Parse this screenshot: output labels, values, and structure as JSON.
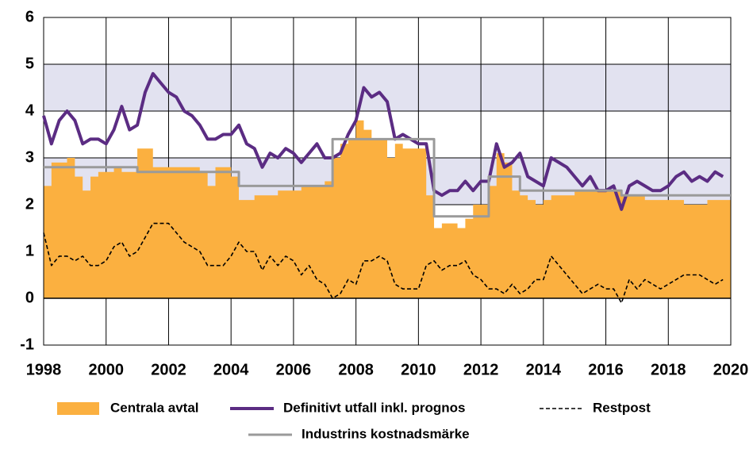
{
  "chart_data": {
    "type": "line",
    "xlim": [
      1998,
      2020
    ],
    "xticks": [
      1998,
      2000,
      2002,
      2004,
      2006,
      2008,
      2010,
      2012,
      2014,
      2016,
      2018,
      2020
    ],
    "ylim": [
      -1,
      6
    ],
    "yticks": [
      -1,
      0,
      1,
      2,
      3,
      4,
      5,
      6
    ],
    "grid": true,
    "shaded_bands": [
      [
        2,
        3
      ],
      [
        4,
        5
      ]
    ],
    "legend": "bottom",
    "x": [
      1998,
      1998.25,
      1998.5,
      1998.75,
      1999,
      1999.25,
      1999.5,
      1999.75,
      2000,
      2000.25,
      2000.5,
      2000.75,
      2001,
      2001.25,
      2001.5,
      2001.75,
      2002,
      2002.25,
      2002.5,
      2002.75,
      2003,
      2003.25,
      2003.5,
      2003.75,
      2004,
      2004.25,
      2004.5,
      2004.75,
      2005,
      2005.25,
      2005.5,
      2005.75,
      2006,
      2006.25,
      2006.5,
      2006.75,
      2007,
      2007.25,
      2007.5,
      2007.75,
      2008,
      2008.25,
      2008.5,
      2008.75,
      2009,
      2009.25,
      2009.5,
      2009.75,
      2010,
      2010.25,
      2010.5,
      2010.75,
      2011,
      2011.25,
      2011.5,
      2011.75,
      2012,
      2012.25,
      2012.5,
      2012.75,
      2013,
      2013.25,
      2013.5,
      2013.75,
      2014,
      2014.25,
      2014.5,
      2014.75,
      2015,
      2015.25,
      2015.5,
      2015.75,
      2016,
      2016.25,
      2016.5,
      2016.75,
      2017,
      2017.25,
      2017.5,
      2017.75,
      2018,
      2018.25,
      2018.5,
      2018.75,
      2019,
      2019.25,
      2019.5,
      2019.75
    ],
    "series": [
      {
        "name": "Centrala avtal",
        "kind": "area",
        "step": true,
        "color": "#fbb040",
        "values": [
          2.4,
          2.9,
          2.9,
          3.0,
          2.6,
          2.3,
          2.6,
          2.7,
          2.7,
          2.8,
          2.7,
          2.7,
          3.2,
          3.2,
          2.8,
          2.8,
          2.8,
          2.8,
          2.8,
          2.8,
          2.7,
          2.4,
          2.8,
          2.8,
          2.6,
          2.1,
          2.1,
          2.2,
          2.2,
          2.2,
          2.3,
          2.3,
          2.3,
          2.4,
          2.4,
          2.4,
          2.5,
          3.0,
          3.3,
          3.4,
          3.8,
          3.6,
          3.4,
          3.4,
          3.0,
          3.3,
          3.2,
          3.2,
          3.2,
          2.2,
          1.5,
          1.6,
          1.6,
          1.5,
          1.7,
          2.0,
          2.0,
          2.4,
          3.1,
          2.9,
          2.3,
          2.2,
          2.1,
          2.0,
          2.1,
          2.2,
          2.2,
          2.2,
          2.3,
          2.3,
          2.3,
          2.3,
          2.3,
          2.3,
          2.2,
          2.2,
          2.2,
          2.1,
          2.1,
          2.1,
          2.1,
          2.1,
          2.0,
          2.0,
          2.0,
          2.1,
          2.1,
          2.1
        ]
      },
      {
        "name": "Definitivt utfall inkl. prognos",
        "kind": "line",
        "step": false,
        "color": "#5b2c83",
        "width": 4,
        "values": [
          3.9,
          3.3,
          3.8,
          4.0,
          3.8,
          3.3,
          3.4,
          3.4,
          3.3,
          3.6,
          4.1,
          3.6,
          3.7,
          4.4,
          4.8,
          4.6,
          4.4,
          4.3,
          4.0,
          3.9,
          3.7,
          3.4,
          3.4,
          3.5,
          3.5,
          3.7,
          3.3,
          3.2,
          2.8,
          3.1,
          3.0,
          3.2,
          3.1,
          2.9,
          3.1,
          3.3,
          3.0,
          3.0,
          3.1,
          3.5,
          3.8,
          4.5,
          4.3,
          4.4,
          4.2,
          3.4,
          3.5,
          3.4,
          3.3,
          3.3,
          2.3,
          2.2,
          2.3,
          2.3,
          2.5,
          2.3,
          2.5,
          2.5,
          3.3,
          2.8,
          2.9,
          3.1,
          2.6,
          2.5,
          2.4,
          3.0,
          2.9,
          2.8,
          2.6,
          2.4,
          2.6,
          2.3,
          2.3,
          2.4,
          1.9,
          2.4,
          2.5,
          2.4,
          2.3,
          2.3,
          2.4,
          2.6,
          2.7,
          2.5,
          2.6,
          2.5,
          2.7,
          2.6
        ]
      },
      {
        "name": "Restpost",
        "kind": "line",
        "step": false,
        "dashed": true,
        "color": "#000000",
        "width": 1.6,
        "values": [
          1.4,
          0.7,
          0.9,
          0.9,
          0.8,
          0.9,
          0.7,
          0.7,
          0.8,
          1.1,
          1.2,
          0.9,
          1.0,
          1.3,
          1.6,
          1.6,
          1.6,
          1.4,
          1.2,
          1.1,
          1.0,
          0.7,
          0.7,
          0.7,
          0.9,
          1.2,
          1.0,
          1.0,
          0.6,
          0.9,
          0.7,
          0.9,
          0.8,
          0.5,
          0.7,
          0.4,
          0.3,
          0.0,
          0.1,
          0.4,
          0.3,
          0.8,
          0.8,
          0.9,
          0.8,
          0.3,
          0.2,
          0.2,
          0.2,
          0.7,
          0.8,
          0.6,
          0.7,
          0.7,
          0.8,
          0.5,
          0.4,
          0.2,
          0.2,
          0.1,
          0.3,
          0.1,
          0.2,
          0.4,
          0.4,
          0.9,
          0.7,
          0.5,
          0.3,
          0.1,
          0.2,
          0.3,
          0.2,
          0.2,
          -0.1,
          0.4,
          0.2,
          0.4,
          0.3,
          0.2,
          0.3,
          0.4,
          0.5,
          0.5,
          0.5,
          0.4,
          0.3,
          0.4
        ]
      },
      {
        "name": "Industrins kostnadsmärke",
        "kind": "line",
        "step": true,
        "color": "#9a9a9a",
        "width": 3,
        "values": [
          2.8,
          2.8,
          2.8,
          2.8,
          2.8,
          2.8,
          2.8,
          2.8,
          2.8,
          2.8,
          2.8,
          2.8,
          2.7,
          2.7,
          2.7,
          2.7,
          2.7,
          2.7,
          2.7,
          2.7,
          2.7,
          2.7,
          2.7,
          2.7,
          2.7,
          2.4,
          2.4,
          2.4,
          2.4,
          2.4,
          2.4,
          2.4,
          2.4,
          2.4,
          2.4,
          2.4,
          2.4,
          3.4,
          3.4,
          3.4,
          3.4,
          3.4,
          3.4,
          3.4,
          3.4,
          3.4,
          3.4,
          3.4,
          3.4,
          3.4,
          1.75,
          1.75,
          1.75,
          1.75,
          1.75,
          1.75,
          1.75,
          2.6,
          2.6,
          2.6,
          2.6,
          2.3,
          2.3,
          2.3,
          2.3,
          2.3,
          2.3,
          2.3,
          2.3,
          2.3,
          2.3,
          2.3,
          2.3,
          2.3,
          2.2,
          2.2,
          2.2,
          2.2,
          2.2,
          2.2,
          2.2,
          2.2,
          2.2,
          2.2,
          2.2,
          2.2,
          2.2,
          2.2
        ]
      }
    ]
  }
}
